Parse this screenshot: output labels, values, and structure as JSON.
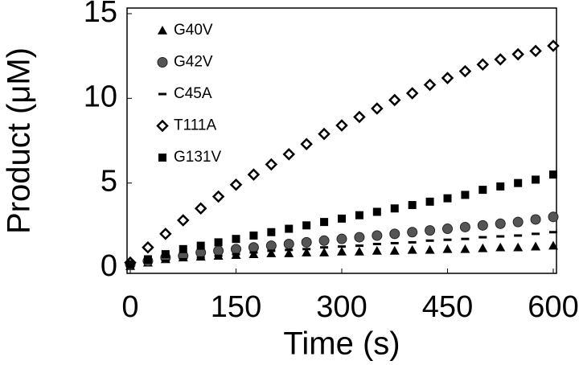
{
  "chart_data": {
    "type": "scatter",
    "x_label": "Time (s)",
    "y_label": "Product (μM)",
    "xlim": [
      0,
      600
    ],
    "ylim": [
      0,
      15
    ],
    "xticks": [
      0,
      150,
      300,
      450,
      600
    ],
    "yticks": [
      0,
      5,
      10,
      15
    ],
    "grid": false,
    "legend": "upper left",
    "x": [
      0,
      25,
      50,
      75,
      100,
      125,
      150,
      175,
      200,
      225,
      250,
      275,
      300,
      325,
      350,
      375,
      400,
      425,
      450,
      475,
      500,
      525,
      550,
      575,
      600
    ],
    "series": [
      {
        "name": "G40V",
        "color": "#000000",
        "marker": "triangle",
        "values": [
          0.1,
          0.3,
          0.5,
          0.6,
          0.65,
          0.7,
          0.75,
          0.8,
          0.85,
          0.85,
          0.9,
          0.9,
          0.95,
          0.95,
          1.0,
          1.0,
          1.05,
          1.05,
          1.1,
          1.1,
          1.15,
          1.2,
          1.2,
          1.25,
          1.3
        ]
      },
      {
        "name": "G42V",
        "color": "#555555",
        "marker": "circle",
        "values": [
          0.2,
          0.4,
          0.6,
          0.7,
          0.9,
          1.0,
          1.1,
          1.2,
          1.3,
          1.4,
          1.5,
          1.6,
          1.7,
          1.8,
          1.9,
          2.0,
          2.1,
          2.2,
          2.3,
          2.4,
          2.5,
          2.6,
          2.7,
          2.85,
          3.0
        ]
      },
      {
        "name": "C45A",
        "color": "#000000",
        "marker": "dash",
        "values": [
          0.1,
          0.3,
          0.4,
          0.5,
          0.6,
          0.7,
          0.8,
          0.9,
          1.0,
          1.05,
          1.1,
          1.2,
          1.25,
          1.3,
          1.4,
          1.45,
          1.5,
          1.6,
          1.65,
          1.7,
          1.8,
          1.85,
          1.9,
          2.0,
          2.1
        ]
      },
      {
        "name": "T111A",
        "color": "#000000",
        "marker": "diamond",
        "values": [
          0.3,
          1.2,
          2.0,
          2.8,
          3.5,
          4.2,
          4.9,
          5.5,
          6.1,
          6.7,
          7.3,
          7.9,
          8.4,
          8.9,
          9.4,
          9.9,
          10.3,
          10.8,
          11.2,
          11.6,
          12.0,
          12.3,
          12.6,
          12.8,
          13.1
        ]
      },
      {
        "name": "G131V",
        "color": "#000000",
        "marker": "square",
        "values": [
          0.2,
          0.5,
          0.8,
          1.1,
          1.3,
          1.5,
          1.7,
          1.9,
          2.1,
          2.3,
          2.5,
          2.7,
          2.9,
          3.1,
          3.3,
          3.5,
          3.7,
          3.9,
          4.1,
          4.3,
          4.6,
          4.8,
          5.0,
          5.2,
          5.5
        ]
      }
    ]
  }
}
